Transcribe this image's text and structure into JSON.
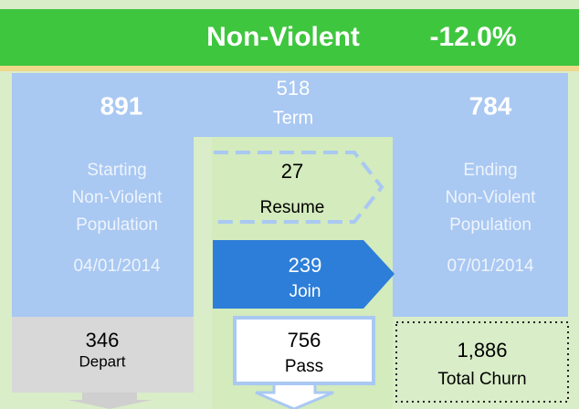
{
  "header": {
    "title": "Non-Violent",
    "change": "-12.0%"
  },
  "start": {
    "value": "891",
    "lines": [
      "Starting",
      "Non-Violent",
      "Population",
      "04/01/2014"
    ]
  },
  "term": {
    "value": "518",
    "label": "Term"
  },
  "end": {
    "value": "784",
    "lines": [
      "Ending",
      "Non-Violent",
      "Population",
      "07/01/2014"
    ]
  },
  "resume": {
    "value": "27",
    "label": "Resume"
  },
  "join": {
    "value": "239",
    "label": "Join"
  },
  "depart": {
    "value": "346",
    "label": "Depart"
  },
  "pass": {
    "value": "756",
    "label": "Pass"
  },
  "churn": {
    "value": "1,886",
    "label": "Total Churn"
  }
}
